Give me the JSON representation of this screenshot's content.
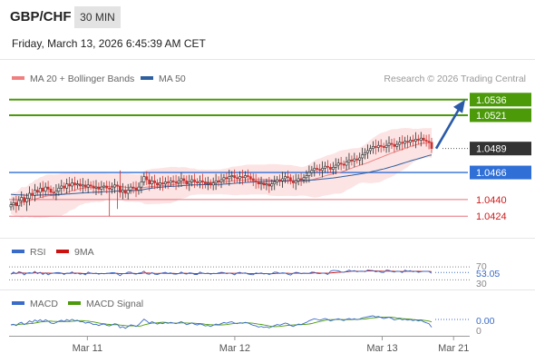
{
  "header": {
    "symbol": "GBP/CHF",
    "timeframe": "30 MIN",
    "datetime": "Friday, March 13, 2026 6:45:39 AM CET"
  },
  "legend": {
    "ma20_label": "MA 20 + Bollinger Bands",
    "ma50_label": "MA 50",
    "credit": "Research © 2026 Trading Central",
    "ma20_color": "#f08080",
    "ma50_color": "#2e5f9e"
  },
  "colors": {
    "resistance": "#4c9a0a",
    "pivot": "#2f6fd6",
    "support": "#e8717e",
    "current": "#333333",
    "arrow": "#2a5aa8",
    "candle_up": "#2a2a2a",
    "candle_down": "#cc3333"
  },
  "levels": [
    {
      "value": 1.0536,
      "label": "1.0536",
      "kind": "resistance"
    },
    {
      "value": 1.0521,
      "label": "1.0521",
      "kind": "resistance"
    },
    {
      "value": 1.0489,
      "label": "1.0489",
      "kind": "current"
    },
    {
      "value": 1.0466,
      "label": "1.0466",
      "kind": "pivot"
    },
    {
      "value": 1.044,
      "label": "1.0440",
      "kind": "support"
    },
    {
      "value": 1.0424,
      "label": "1.0424",
      "kind": "support"
    }
  ],
  "x_axis": {
    "ticks": [
      {
        "label": "Mar 11",
        "pos": 0.17
      },
      {
        "label": "Mar 12",
        "pos": 0.49
      },
      {
        "label": "Mar 13",
        "pos": 0.81
      },
      {
        "label": "Mar 21",
        "pos": 0.965
      }
    ]
  },
  "rsi_panel": {
    "rsi_label": "RSI",
    "ma_label": "9MA",
    "rsi_color": "#3a6bc8",
    "ma_color": "#cc1111",
    "levels": [
      "70",
      "30"
    ],
    "current_label": "53.05",
    "current_value": 53.05
  },
  "macd_panel": {
    "macd_label": "MACD",
    "signal_label": "MACD Signal",
    "macd_color": "#3a6bc8",
    "signal_color": "#4c9a0a",
    "current_label": "0.00",
    "zero_label": "0"
  },
  "chart_data": {
    "type": "candlestick",
    "ylim": [
      1.0412,
      1.0548
    ],
    "close": [
      1.0435,
      1.0437,
      1.0434,
      1.0439,
      1.0442,
      1.0438,
      1.0441,
      1.0446,
      1.0444,
      1.0449,
      1.0447,
      1.0451,
      1.0448,
      1.0452,
      1.045,
      1.0447,
      1.0446,
      1.0448,
      1.0451,
      1.0453,
      1.0451,
      1.0455,
      1.0453,
      1.0456,
      1.0454,
      1.0455,
      1.0453,
      1.0454,
      1.0452,
      1.0454,
      1.0453,
      1.0451,
      1.0452,
      1.045,
      1.0452,
      1.0453,
      1.0451,
      1.045,
      1.0452,
      1.0454,
      1.0453,
      1.0447,
      1.0449,
      1.0446,
      1.0449,
      1.0452,
      1.0451,
      1.0449,
      1.0452,
      1.0457,
      1.0462,
      1.0459,
      1.0455,
      1.0458,
      1.0456,
      1.0454,
      1.0456,
      1.0455,
      1.0457,
      1.0456,
      1.0458,
      1.0457,
      1.0456,
      1.0458,
      1.046,
      1.0458,
      1.0455,
      1.0457,
      1.0459,
      1.0457,
      1.0456,
      1.0458,
      1.0457,
      1.0455,
      1.0456,
      1.0454,
      1.0456,
      1.0458,
      1.0457,
      1.0459,
      1.0461,
      1.046,
      1.0462,
      1.0463,
      1.0461,
      1.046,
      1.0462,
      1.0461,
      1.0463,
      1.0462,
      1.046,
      1.0458,
      1.0457,
      1.0455,
      1.0456,
      1.0454,
      1.0455,
      1.0453,
      1.0455,
      1.0457,
      1.0459,
      1.0458,
      1.046,
      1.0462,
      1.0461,
      1.0458,
      1.0456,
      1.0458,
      1.046,
      1.0459,
      1.0461,
      1.0463,
      1.0466,
      1.0468,
      1.047,
      1.0469,
      1.0468,
      1.047,
      1.0472,
      1.0471,
      1.0469,
      1.0471,
      1.0473,
      1.0475,
      1.0474,
      1.0473,
      1.0476,
      1.0478,
      1.0477,
      1.0479,
      1.0478,
      1.048,
      1.0483,
      1.0485,
      1.0487,
      1.0489,
      1.0491,
      1.049,
      1.0492,
      1.0491,
      1.049,
      1.0492,
      1.0494,
      1.0493,
      1.0491,
      1.0493,
      1.0495,
      1.0494,
      1.0496,
      1.0495,
      1.0497,
      1.0496,
      1.0498,
      1.0497,
      1.0499,
      1.0497,
      1.0496,
      1.0495,
      1.0489
    ],
    "highlights": [
      {
        "index": 6,
        "low": 1.0429
      },
      {
        "index": 37,
        "low": 1.0424
      },
      {
        "index": 40,
        "low": 1.0431
      },
      {
        "index": 41,
        "high": 1.0468
      }
    ],
    "ma20_start": 1.0438,
    "ma50_start": 1.0445,
    "projection": {
      "from": 1.0489,
      "to": 1.0536
    }
  }
}
